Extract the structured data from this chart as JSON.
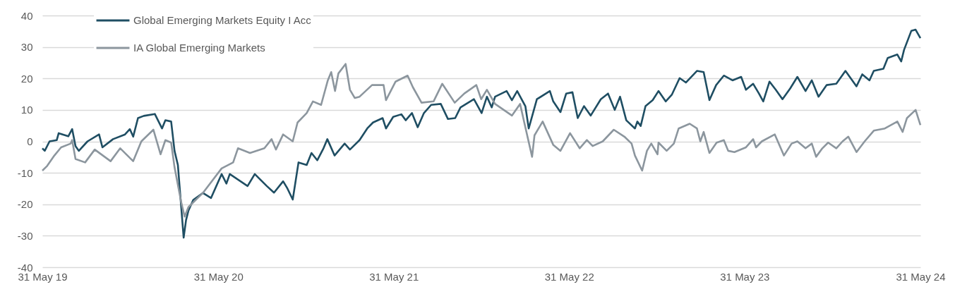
{
  "chart_data": {
    "type": "line",
    "xlim": [
      "2019-05-31",
      "2024-05-31"
    ],
    "xticks": [
      {
        "value": "2019-05-31",
        "label": "31 May 19"
      },
      {
        "value": "2020-05-31",
        "label": "31 May 20"
      },
      {
        "value": "2021-05-31",
        "label": "31 May 21"
      },
      {
        "value": "2022-05-31",
        "label": "31 May 22"
      },
      {
        "value": "2023-05-31",
        "label": "31 May 23"
      },
      {
        "value": "2024-05-31",
        "label": "31 May 24"
      }
    ],
    "ylim": [
      -40,
      40
    ],
    "yticks": [
      -40,
      -30,
      -20,
      -10,
      0,
      10,
      20,
      30,
      40
    ],
    "grid": "y",
    "legend": "top left",
    "line_style": "solid",
    "marker": "none",
    "series": [
      {
        "name": "Global Emerging Markets Equity I Acc",
        "color": "#1f4e63",
        "x": [
          "2019-05-31",
          "2019-06-05",
          "2019-06-15",
          "2019-06-30",
          "2019-07-04",
          "2019-07-24",
          "2019-08-01",
          "2019-08-08",
          "2019-08-15",
          "2019-09-02",
          "2019-09-26",
          "2019-10-03",
          "2019-10-25",
          "2019-11-19",
          "2019-11-29",
          "2019-12-06",
          "2019-12-16",
          "2019-12-28",
          "2020-01-20",
          "2020-02-04",
          "2020-02-11",
          "2020-02-23",
          "2020-03-01",
          "2020-03-08",
          "2020-03-15",
          "2020-03-20",
          "2020-03-25",
          "2020-03-30",
          "2020-04-09",
          "2020-04-29",
          "2020-05-16",
          "2020-06-07",
          "2020-06-17",
          "2020-06-24",
          "2020-07-31",
          "2020-08-15",
          "2020-09-09",
          "2020-09-24",
          "2020-10-13",
          "2020-10-22",
          "2020-11-02",
          "2020-11-14",
          "2020-12-01",
          "2020-12-11",
          "2020-12-23",
          "2021-01-05",
          "2021-01-13",
          "2021-01-28",
          "2021-02-18",
          "2021-03-01",
          "2021-03-21",
          "2021-04-06",
          "2021-04-18",
          "2021-05-08",
          "2021-05-15",
          "2021-05-30",
          "2021-06-16",
          "2021-06-25",
          "2021-07-08",
          "2021-07-20",
          "2021-08-02",
          "2021-08-17",
          "2021-09-06",
          "2021-09-21",
          "2021-10-06",
          "2021-10-17",
          "2021-11-14",
          "2021-11-30",
          "2021-12-11",
          "2021-12-21",
          "2021-12-28",
          "2022-01-21",
          "2022-02-01",
          "2022-02-12",
          "2022-03-01",
          "2022-03-08",
          "2022-03-25",
          "2022-04-21",
          "2022-04-28",
          "2022-05-13",
          "2022-05-25",
          "2022-06-07",
          "2022-06-18",
          "2022-07-01",
          "2022-07-15",
          "2022-08-05",
          "2022-08-20",
          "2022-09-03",
          "2022-09-14",
          "2022-09-27",
          "2022-10-15",
          "2022-10-20",
          "2022-10-27",
          "2022-11-06",
          "2022-11-21",
          "2022-12-03",
          "2022-12-18",
          "2022-12-31",
          "2023-01-16",
          "2023-01-29",
          "2023-02-21",
          "2023-03-07",
          "2023-03-19",
          "2023-04-02",
          "2023-04-18",
          "2023-05-06",
          "2023-05-24",
          "2023-06-03",
          "2023-06-18",
          "2023-06-30",
          "2023-07-09",
          "2023-07-22",
          "2023-08-04",
          "2023-08-18",
          "2023-09-03",
          "2023-09-18",
          "2023-10-05",
          "2023-10-18",
          "2023-11-01",
          "2023-11-18",
          "2023-12-08",
          "2023-12-27",
          "2024-01-19",
          "2024-01-31",
          "2024-02-15",
          "2024-02-24",
          "2024-03-15",
          "2024-03-24",
          "2024-04-13",
          "2024-04-21",
          "2024-04-27",
          "2024-05-12",
          "2024-05-21",
          "2024-05-31"
        ],
        "values": [
          -2.2,
          -3,
          0,
          0.4,
          2.6,
          1.6,
          3.9,
          -1.5,
          -3,
          0,
          2.2,
          -1.9,
          0.7,
          2.2,
          3.9,
          1.5,
          7.4,
          8.1,
          8.7,
          4.1,
          6.7,
          6.3,
          -3,
          -7.5,
          -21,
          -30.6,
          -25,
          -22,
          -18.6,
          -16.4,
          -18,
          -10.4,
          -13.4,
          -10.4,
          -14.2,
          -10.4,
          -14.2,
          -16.3,
          -12.7,
          -15,
          -18.5,
          -6.7,
          -7.5,
          -3.7,
          -6,
          -2.2,
          0.7,
          -4.5,
          -0.7,
          -2.6,
          0.4,
          4.1,
          6,
          7.4,
          4.1,
          7.8,
          8.6,
          6.7,
          9,
          4.5,
          9,
          11.6,
          11.9,
          7.1,
          7.4,
          10.8,
          13.4,
          9,
          14.2,
          10.8,
          14.2,
          16,
          13.1,
          16,
          11.2,
          4.1,
          13.4,
          16,
          12.7,
          9.3,
          15.2,
          15.6,
          7.4,
          11.2,
          8.2,
          13.4,
          15.2,
          10,
          14.2,
          6.7,
          4.1,
          6.3,
          4.9,
          11.2,
          13.1,
          16,
          12.7,
          14.9,
          20.1,
          18.7,
          22.4,
          22,
          13.1,
          17.9,
          20.9,
          19.4,
          20.5,
          16.4,
          18.3,
          15.2,
          12.7,
          19,
          16.4,
          13.4,
          16.8,
          20.5,
          16,
          19.4,
          14.2,
          17.9,
          18.3,
          22.4,
          17.5,
          21.3,
          19.4,
          22.4,
          23.1,
          26.5,
          27.6,
          25.4,
          29.1,
          35.1,
          35.5,
          32.8
        ]
      },
      {
        "name": "IA Global Emerging Markets",
        "color": "#8c969e",
        "x": [
          "2019-05-31",
          "2019-06-10",
          "2019-06-25",
          "2019-07-09",
          "2019-07-29",
          "2019-08-01",
          "2019-08-08",
          "2019-08-28",
          "2019-09-17",
          "2019-10-20",
          "2019-11-09",
          "2019-12-06",
          "2019-12-23",
          "2020-01-17",
          "2020-02-01",
          "2020-02-11",
          "2020-02-23",
          "2020-03-01",
          "2020-03-15",
          "2020-03-22",
          "2020-03-30",
          "2020-04-29",
          "2020-06-07",
          "2020-07-01",
          "2020-07-11",
          "2020-08-05",
          "2020-09-04",
          "2020-09-19",
          "2020-09-28",
          "2020-10-13",
          "2020-11-02",
          "2020-11-12",
          "2020-12-01",
          "2020-12-14",
          "2020-12-31",
          "2021-01-14",
          "2021-01-21",
          "2021-01-29",
          "2021-02-05",
          "2021-02-20",
          "2021-03-01",
          "2021-03-11",
          "2021-03-21",
          "2021-04-16",
          "2021-05-10",
          "2021-05-15",
          "2021-06-04",
          "2021-06-29",
          "2021-07-10",
          "2021-07-28",
          "2021-08-22",
          "2021-09-09",
          "2021-10-05",
          "2021-10-25",
          "2021-11-19",
          "2021-11-29",
          "2021-12-11",
          "2021-12-28",
          "2022-02-01",
          "2022-02-18",
          "2022-03-01",
          "2022-03-15",
          "2022-03-20",
          "2022-04-06",
          "2022-04-28",
          "2022-05-13",
          "2022-06-02",
          "2022-06-22",
          "2022-07-07",
          "2022-07-19",
          "2022-08-09",
          "2022-09-01",
          "2022-09-23",
          "2022-10-08",
          "2022-10-15",
          "2022-10-30",
          "2022-11-09",
          "2022-11-18",
          "2022-12-01",
          "2022-12-03",
          "2022-12-20",
          "2023-01-04",
          "2023-01-14",
          "2023-02-06",
          "2023-02-21",
          "2023-02-28",
          "2023-03-07",
          "2023-03-19",
          "2023-04-03",
          "2023-04-18",
          "2023-04-27",
          "2023-05-10",
          "2023-06-03",
          "2023-06-18",
          "2023-06-24",
          "2023-07-06",
          "2023-08-02",
          "2023-08-21",
          "2023-09-06",
          "2023-09-18",
          "2023-10-05",
          "2023-10-18",
          "2023-10-27",
          "2023-11-09",
          "2023-11-21",
          "2023-12-08",
          "2023-12-21",
          "2024-01-02",
          "2024-01-19",
          "2024-02-05",
          "2024-02-24",
          "2024-03-18",
          "2024-04-13",
          "2024-04-24",
          "2024-05-03",
          "2024-05-21",
          "2024-05-31"
        ],
        "values": [
          -9.3,
          -7.8,
          -4.5,
          -1.9,
          -0.7,
          0.4,
          -5.6,
          -6.7,
          -2.6,
          -6.3,
          -2.2,
          -6.3,
          0,
          3.7,
          -4.1,
          0.4,
          -0.4,
          -8.2,
          -19.4,
          -23.9,
          -20.9,
          -16.4,
          -8.6,
          -6.7,
          -2.2,
          -3.7,
          -2.2,
          0.7,
          -2.6,
          2.2,
          0,
          6,
          9,
          12.7,
          11.6,
          19.4,
          22,
          16,
          21.6,
          24.6,
          16.4,
          13.8,
          14.2,
          17.9,
          17.9,
          13.1,
          19,
          20.9,
          17.2,
          12.3,
          12.7,
          18.3,
          12.3,
          15.2,
          17.9,
          13.4,
          16.4,
          11.9,
          8.2,
          11.9,
          4.5,
          -4.9,
          1.9,
          6.3,
          -1.1,
          -3,
          2.6,
          -2.2,
          0.4,
          -1.5,
          0,
          3.7,
          1.5,
          -0.7,
          -4.5,
          -9.3,
          -3,
          -0.7,
          -4.1,
          -0.4,
          -3,
          -0.7,
          4.1,
          5.6,
          4.1,
          0,
          3,
          -3.7,
          -0.4,
          0.4,
          -3,
          -3.4,
          -1.9,
          0.7,
          -1.9,
          0,
          2.2,
          -4.5,
          -0.7,
          0,
          -2.2,
          -0.7,
          -4.9,
          -2.2,
          -0.4,
          -2.2,
          0,
          1.5,
          -3.4,
          0,
          3.4,
          4.1,
          6.3,
          3,
          7.4,
          10,
          5.2
        ]
      }
    ]
  }
}
